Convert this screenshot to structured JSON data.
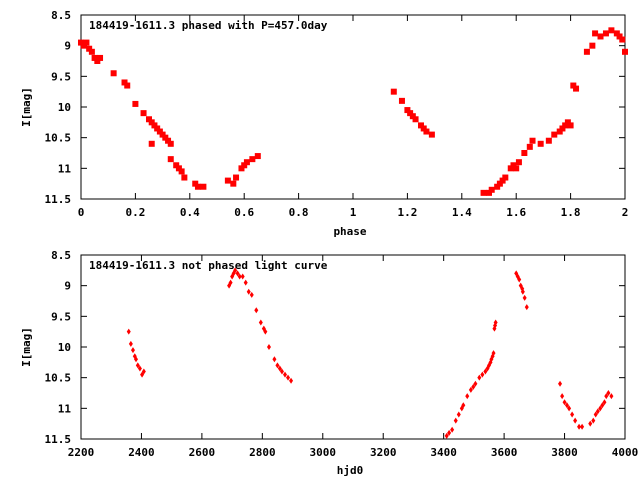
{
  "colors": {
    "points": "#ff0000",
    "axes": "#000000",
    "background": "#ffffff"
  },
  "chart_data": [
    {
      "type": "scatter",
      "title": "184419-1611.3 phased with P=457.0day",
      "xlabel": "phase",
      "ylabel": "I[mag]",
      "xlim": [
        0,
        2
      ],
      "ylim": [
        8.5,
        11.5
      ],
      "y_inverted": true,
      "grid": false,
      "x_ticks": [
        {
          "value": 0,
          "label": "0"
        },
        {
          "value": 0.2,
          "label": "0.2"
        },
        {
          "value": 0.4,
          "label": "0.4"
        },
        {
          "value": 0.6,
          "label": "0.6"
        },
        {
          "value": 0.8,
          "label": "0.8"
        },
        {
          "value": 1,
          "label": "1"
        },
        {
          "value": 1.2,
          "label": "1.2"
        },
        {
          "value": 1.4,
          "label": "1.4"
        },
        {
          "value": 1.6,
          "label": "1.6"
        },
        {
          "value": 1.8,
          "label": "1.8"
        },
        {
          "value": 2,
          "label": "2"
        }
      ],
      "y_ticks": [
        {
          "value": 8.5,
          "label": "8.5"
        },
        {
          "value": 9,
          "label": "9"
        },
        {
          "value": 9.5,
          "label": "9.5"
        },
        {
          "value": 10,
          "label": "10"
        },
        {
          "value": 10.5,
          "label": "10.5"
        },
        {
          "value": 11,
          "label": "11"
        },
        {
          "value": 11.5,
          "label": "11.5"
        }
      ],
      "points": [
        [
          0.0,
          8.95
        ],
        [
          0.01,
          9.0
        ],
        [
          0.02,
          8.95
        ],
        [
          0.03,
          9.05
        ],
        [
          0.04,
          9.1
        ],
        [
          0.05,
          9.2
        ],
        [
          0.06,
          9.25
        ],
        [
          0.07,
          9.2
        ],
        [
          0.12,
          9.45
        ],
        [
          0.16,
          9.6
        ],
        [
          0.17,
          9.65
        ],
        [
          0.2,
          9.95
        ],
        [
          0.23,
          10.1
        ],
        [
          0.25,
          10.2
        ],
        [
          0.26,
          10.25
        ],
        [
          0.27,
          10.3
        ],
        [
          0.28,
          10.35
        ],
        [
          0.29,
          10.4
        ],
        [
          0.3,
          10.45
        ],
        [
          0.31,
          10.5
        ],
        [
          0.32,
          10.55
        ],
        [
          0.33,
          10.6
        ],
        [
          0.26,
          10.6
        ],
        [
          0.33,
          10.85
        ],
        [
          0.35,
          10.95
        ],
        [
          0.36,
          11.0
        ],
        [
          0.37,
          11.05
        ],
        [
          0.38,
          11.15
        ],
        [
          0.42,
          11.25
        ],
        [
          0.43,
          11.3
        ],
        [
          0.45,
          11.3
        ],
        [
          0.54,
          11.2
        ],
        [
          0.56,
          11.25
        ],
        [
          0.57,
          11.15
        ],
        [
          0.59,
          11.0
        ],
        [
          0.6,
          10.95
        ],
        [
          0.61,
          10.9
        ],
        [
          0.63,
          10.85
        ],
        [
          0.65,
          10.8
        ],
        [
          1.15,
          9.75
        ],
        [
          1.18,
          9.9
        ],
        [
          1.2,
          10.05
        ],
        [
          1.21,
          10.1
        ],
        [
          1.22,
          10.15
        ],
        [
          1.23,
          10.2
        ],
        [
          1.25,
          10.3
        ],
        [
          1.26,
          10.35
        ],
        [
          1.27,
          10.4
        ],
        [
          1.29,
          10.45
        ],
        [
          1.48,
          11.4
        ],
        [
          1.5,
          11.4
        ],
        [
          1.51,
          11.35
        ],
        [
          1.53,
          11.3
        ],
        [
          1.54,
          11.25
        ],
        [
          1.55,
          11.2
        ],
        [
          1.56,
          11.15
        ],
        [
          1.58,
          11.0
        ],
        [
          1.59,
          10.95
        ],
        [
          1.6,
          11.0
        ],
        [
          1.61,
          10.9
        ],
        [
          1.63,
          10.75
        ],
        [
          1.65,
          10.65
        ],
        [
          1.66,
          10.55
        ],
        [
          1.69,
          10.6
        ],
        [
          1.72,
          10.55
        ],
        [
          1.74,
          10.45
        ],
        [
          1.76,
          10.4
        ],
        [
          1.77,
          10.35
        ],
        [
          1.78,
          10.3
        ],
        [
          1.79,
          10.25
        ],
        [
          1.8,
          10.3
        ],
        [
          1.81,
          9.65
        ],
        [
          1.82,
          9.7
        ],
        [
          1.86,
          9.1
        ],
        [
          1.88,
          9.0
        ],
        [
          1.89,
          8.8
        ],
        [
          1.91,
          8.85
        ],
        [
          1.93,
          8.8
        ],
        [
          1.95,
          8.75
        ],
        [
          1.97,
          8.8
        ],
        [
          1.98,
          8.85
        ],
        [
          1.99,
          8.9
        ],
        [
          2.0,
          9.1
        ]
      ]
    },
    {
      "type": "scatter",
      "title": "184419-1611.3 not phased light curve",
      "xlabel": "hjd0",
      "ylabel": "I[mag]",
      "xlim": [
        2200,
        4000
      ],
      "ylim": [
        8.5,
        11.5
      ],
      "y_inverted": true,
      "grid": false,
      "x_ticks": [
        {
          "value": 2200,
          "label": "2200"
        },
        {
          "value": 2400,
          "label": "2400"
        },
        {
          "value": 2600,
          "label": "2600"
        },
        {
          "value": 2800,
          "label": "2800"
        },
        {
          "value": 3000,
          "label": "3000"
        },
        {
          "value": 3200,
          "label": "3200"
        },
        {
          "value": 3400,
          "label": "3400"
        },
        {
          "value": 3600,
          "label": "3600"
        },
        {
          "value": 3800,
          "label": "3800"
        },
        {
          "value": 4000,
          "label": "4000"
        }
      ],
      "y_ticks": [
        {
          "value": 8.5,
          "label": "8.5"
        },
        {
          "value": 9,
          "label": "9"
        },
        {
          "value": 9.5,
          "label": "9.5"
        },
        {
          "value": 10,
          "label": "10"
        },
        {
          "value": 10.5,
          "label": "10.5"
        },
        {
          "value": 11,
          "label": "11"
        },
        {
          "value": 11.5,
          "label": "11.5"
        }
      ],
      "points": [
        [
          2358,
          9.75
        ],
        [
          2365,
          9.95
        ],
        [
          2372,
          10.05
        ],
        [
          2378,
          10.15
        ],
        [
          2382,
          10.2
        ],
        [
          2388,
          10.3
        ],
        [
          2395,
          10.35
        ],
        [
          2402,
          10.45
        ],
        [
          2408,
          10.4
        ],
        [
          2690,
          9.0
        ],
        [
          2695,
          8.95
        ],
        [
          2700,
          8.85
        ],
        [
          2705,
          8.8
        ],
        [
          2710,
          8.75
        ],
        [
          2718,
          8.8
        ],
        [
          2725,
          8.85
        ],
        [
          2735,
          8.85
        ],
        [
          2745,
          8.95
        ],
        [
          2755,
          9.1
        ],
        [
          2765,
          9.15
        ],
        [
          2780,
          9.4
        ],
        [
          2795,
          9.6
        ],
        [
          2805,
          9.7
        ],
        [
          2810,
          9.75
        ],
        [
          2822,
          10.0
        ],
        [
          2840,
          10.2
        ],
        [
          2850,
          10.3
        ],
        [
          2858,
          10.35
        ],
        [
          2865,
          10.4
        ],
        [
          2875,
          10.45
        ],
        [
          2885,
          10.5
        ],
        [
          2895,
          10.55
        ],
        [
          3410,
          11.45
        ],
        [
          3418,
          11.4
        ],
        [
          3428,
          11.35
        ],
        [
          3440,
          11.2
        ],
        [
          3450,
          11.1
        ],
        [
          3460,
          11.0
        ],
        [
          3465,
          10.95
        ],
        [
          3478,
          10.8
        ],
        [
          3490,
          10.7
        ],
        [
          3498,
          10.65
        ],
        [
          3505,
          10.6
        ],
        [
          3518,
          10.5
        ],
        [
          3528,
          10.45
        ],
        [
          3538,
          10.4
        ],
        [
          3545,
          10.35
        ],
        [
          3550,
          10.3
        ],
        [
          3555,
          10.25
        ],
        [
          3558,
          10.2
        ],
        [
          3562,
          10.15
        ],
        [
          3565,
          10.1
        ],
        [
          3568,
          9.7
        ],
        [
          3570,
          9.65
        ],
        [
          3572,
          9.6
        ],
        [
          3640,
          8.8
        ],
        [
          3645,
          8.85
        ],
        [
          3650,
          8.9
        ],
        [
          3655,
          9.0
        ],
        [
          3660,
          9.05
        ],
        [
          3662,
          9.1
        ],
        [
          3668,
          9.2
        ],
        [
          3675,
          9.35
        ],
        [
          3785,
          10.6
        ],
        [
          3792,
          10.8
        ],
        [
          3800,
          10.9
        ],
        [
          3808,
          10.95
        ],
        [
          3815,
          11.0
        ],
        [
          3825,
          11.1
        ],
        [
          3835,
          11.2
        ],
        [
          3848,
          11.3
        ],
        [
          3858,
          11.3
        ],
        [
          3885,
          11.25
        ],
        [
          3895,
          11.2
        ],
        [
          3903,
          11.1
        ],
        [
          3910,
          11.05
        ],
        [
          3918,
          11.0
        ],
        [
          3925,
          10.95
        ],
        [
          3932,
          10.9
        ],
        [
          3938,
          10.8
        ],
        [
          3945,
          10.75
        ],
        [
          3955,
          10.8
        ]
      ]
    }
  ]
}
